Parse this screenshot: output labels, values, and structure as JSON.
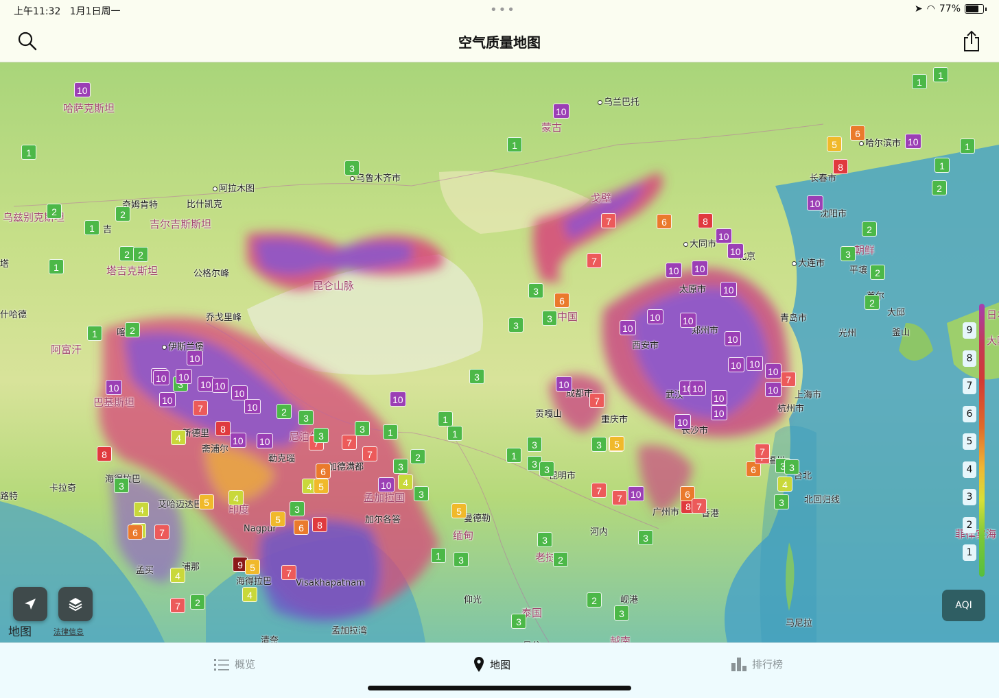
{
  "status": {
    "time": "上午11:32",
    "date": "1月1日周一",
    "battery": "77%"
  },
  "nav": {
    "title": "空气质量地图",
    "search_icon": "search-icon",
    "share_icon": "share-icon"
  },
  "colors": {
    "purple": "#9b3fb5",
    "darkred": "#8b1a1a",
    "red": "#e03a3e",
    "redlight": "#ec5a5a",
    "orange": "#ea7a2c",
    "yellow": "#f0b92b",
    "lime": "#c9d83a",
    "green": "#4cb848"
  },
  "map": {
    "places": [
      {
        "label": "哈萨克斯坦",
        "cls": "country"
      },
      {
        "label": "蒙古",
        "cls": "country"
      },
      {
        "label": "乌兰巴托",
        "cls": "dot"
      },
      {
        "label": "哈尔滨市",
        "cls": "dot"
      },
      {
        "label": "乌鲁木齐市",
        "cls": "dot"
      },
      {
        "label": "长春市",
        "cls": ""
      },
      {
        "label": "阿拉木图",
        "cls": "dot"
      },
      {
        "label": "比什凯克",
        "cls": ""
      },
      {
        "label": "奇姆肯特",
        "cls": ""
      },
      {
        "label": "吉尔吉斯斯坦",
        "cls": "country"
      },
      {
        "label": "乌兹别克斯坦",
        "cls": "country"
      },
      {
        "label": "沈阳市",
        "cls": ""
      },
      {
        "label": "大同市",
        "cls": "dot"
      },
      {
        "label": "北京",
        "cls": ""
      },
      {
        "label": "大连市",
        "cls": "dot"
      },
      {
        "label": "塔吉克斯坦",
        "cls": "country"
      },
      {
        "label": "公格尔峰",
        "cls": ""
      },
      {
        "label": "平壤",
        "cls": ""
      },
      {
        "label": "太原市",
        "cls": ""
      },
      {
        "label": "首尔",
        "cls": ""
      },
      {
        "label": "中国",
        "cls": "country"
      },
      {
        "label": "昆仑山脉",
        "cls": "country"
      },
      {
        "label": "乔戈里峰",
        "cls": ""
      },
      {
        "label": "青岛市",
        "cls": ""
      },
      {
        "label": "大邱",
        "cls": ""
      },
      {
        "label": "光州",
        "cls": ""
      },
      {
        "label": "釜山",
        "cls": ""
      },
      {
        "label": "阿富汗",
        "cls": "country"
      },
      {
        "label": "郑州市",
        "cls": ""
      },
      {
        "label": "西安市",
        "cls": ""
      },
      {
        "label": "伊斯兰堡",
        "cls": "dot"
      },
      {
        "label": "巴基斯坦",
        "cls": "country"
      },
      {
        "label": "成都市",
        "cls": ""
      },
      {
        "label": "上海市",
        "cls": ""
      },
      {
        "label": "杭州市",
        "cls": ""
      },
      {
        "label": "贡嘎山",
        "cls": ""
      },
      {
        "label": "重庆市",
        "cls": ""
      },
      {
        "label": "武汉",
        "cls": ""
      },
      {
        "label": "新德里",
        "cls": ""
      },
      {
        "label": "长沙市",
        "cls": ""
      },
      {
        "label": "斋浦尔",
        "cls": ""
      },
      {
        "label": "尼泊尔",
        "cls": "country"
      },
      {
        "label": "勒克瑙",
        "cls": ""
      },
      {
        "label": "加德满都",
        "cls": ""
      },
      {
        "label": "昆明市",
        "cls": ""
      },
      {
        "label": "福州",
        "cls": ""
      },
      {
        "label": "台北",
        "cls": ""
      },
      {
        "label": "卡拉奇",
        "cls": ""
      },
      {
        "label": "海得拉巴",
        "cls": ""
      },
      {
        "label": "孟加拉国",
        "cls": "country"
      },
      {
        "label": "印度",
        "cls": "country"
      },
      {
        "label": "艾哈迈达巴德",
        "cls": ""
      },
      {
        "label": "广州市",
        "cls": ""
      },
      {
        "label": "香港",
        "cls": ""
      },
      {
        "label": "加尔各答",
        "cls": ""
      },
      {
        "label": "曼德勒",
        "cls": ""
      },
      {
        "label": "缅甸",
        "cls": "country"
      },
      {
        "label": "河内",
        "cls": ""
      },
      {
        "label": "Nagpur",
        "cls": ""
      },
      {
        "label": "孟买",
        "cls": ""
      },
      {
        "label": "浦那",
        "cls": ""
      },
      {
        "label": "海得拉巴",
        "cls": ""
      },
      {
        "label": "Visakhapatnam",
        "cls": ""
      },
      {
        "label": "老挝",
        "cls": "country"
      },
      {
        "label": "仰光",
        "cls": ""
      },
      {
        "label": "岘港",
        "cls": ""
      },
      {
        "label": "泰国",
        "cls": "country"
      },
      {
        "label": "曼谷",
        "cls": ""
      },
      {
        "label": "越南",
        "cls": "country"
      },
      {
        "label": "马尼拉",
        "cls": ""
      },
      {
        "label": "清奈",
        "cls": ""
      },
      {
        "label": "孟加拉湾",
        "cls": ""
      },
      {
        "label": "北回归线",
        "cls": ""
      },
      {
        "label": "什哈德",
        "cls": ""
      },
      {
        "label": "喀什",
        "cls": ""
      },
      {
        "label": "日本",
        "cls": "country"
      },
      {
        "label": "大阪",
        "cls": "country"
      },
      {
        "label": "菲律宾海",
        "cls": "country"
      },
      {
        "label": "戈壁",
        "cls": "country"
      },
      {
        "label": "朝鲜",
        "cls": "country"
      },
      {
        "label": "吉",
        "cls": ""
      },
      {
        "label": "塔",
        "cls": ""
      },
      {
        "label": "路特",
        "cls": ""
      }
    ],
    "markers": [
      {
        "v": "10",
        "c": "purple"
      },
      {
        "v": "10",
        "c": "purple"
      },
      {
        "v": "1",
        "c": "green"
      },
      {
        "v": "1",
        "c": "green"
      },
      {
        "v": "1",
        "c": "green"
      },
      {
        "v": "5",
        "c": "yellow"
      },
      {
        "v": "6",
        "c": "orange"
      },
      {
        "v": "10",
        "c": "purple"
      },
      {
        "v": "1",
        "c": "green"
      },
      {
        "v": "1",
        "c": "green"
      },
      {
        "v": "3",
        "c": "green"
      },
      {
        "v": "8",
        "c": "red"
      },
      {
        "v": "1",
        "c": "green"
      },
      {
        "v": "2",
        "c": "green"
      },
      {
        "v": "2",
        "c": "green"
      },
      {
        "v": "2",
        "c": "green"
      },
      {
        "v": "1",
        "c": "green"
      },
      {
        "v": "10",
        "c": "purple"
      },
      {
        "v": "7",
        "c": "redlight"
      },
      {
        "v": "6",
        "c": "orange"
      },
      {
        "v": "8",
        "c": "red"
      },
      {
        "v": "10",
        "c": "purple"
      },
      {
        "v": "10",
        "c": "purple"
      },
      {
        "v": "2",
        "c": "green"
      },
      {
        "v": "2",
        "c": "green"
      },
      {
        "v": "2",
        "c": "green"
      },
      {
        "v": "3",
        "c": "green"
      },
      {
        "v": "7",
        "c": "redlight"
      },
      {
        "v": "10",
        "c": "purple"
      },
      {
        "v": "10",
        "c": "purple"
      },
      {
        "v": "2",
        "c": "green"
      },
      {
        "v": "1",
        "c": "green"
      },
      {
        "v": "3",
        "c": "green"
      },
      {
        "v": "6",
        "c": "orange"
      },
      {
        "v": "10",
        "c": "purple"
      },
      {
        "v": "2",
        "c": "green"
      },
      {
        "v": "3",
        "c": "green"
      },
      {
        "v": "3",
        "c": "green"
      },
      {
        "v": "10",
        "c": "purple"
      },
      {
        "v": "10",
        "c": "purple"
      },
      {
        "v": "10",
        "c": "purple"
      },
      {
        "v": "1",
        "c": "green"
      },
      {
        "v": "2",
        "c": "green"
      },
      {
        "v": "10",
        "c": "purple"
      },
      {
        "v": "10",
        "c": "purple"
      },
      {
        "v": "10",
        "c": "purple"
      },
      {
        "v": "10",
        "c": "purple"
      },
      {
        "v": "3",
        "c": "green"
      },
      {
        "v": "10",
        "c": "purple"
      },
      {
        "v": "10",
        "c": "purple"
      },
      {
        "v": "10",
        "c": "purple"
      },
      {
        "v": "10",
        "c": "purple"
      },
      {
        "v": "7",
        "c": "redlight"
      },
      {
        "v": "10",
        "c": "purple"
      },
      {
        "v": "10",
        "c": "purple"
      },
      {
        "v": "10",
        "c": "purple"
      },
      {
        "v": "10",
        "c": "purple"
      },
      {
        "v": "10",
        "c": "purple"
      },
      {
        "v": "10",
        "c": "purple"
      },
      {
        "v": "10",
        "c": "purple"
      },
      {
        "v": "7",
        "c": "redlight"
      },
      {
        "v": "10",
        "c": "purple"
      },
      {
        "v": "10",
        "c": "purple"
      },
      {
        "v": "10",
        "c": "purple"
      },
      {
        "v": "3",
        "c": "green"
      },
      {
        "v": "10",
        "c": "purple"
      },
      {
        "v": "10",
        "c": "purple"
      },
      {
        "v": "10",
        "c": "purple"
      },
      {
        "v": "7",
        "c": "redlight"
      },
      {
        "v": "8",
        "c": "red"
      },
      {
        "v": "4",
        "c": "lime"
      },
      {
        "v": "2",
        "c": "green"
      },
      {
        "v": "3",
        "c": "green"
      },
      {
        "v": "3",
        "c": "green"
      },
      {
        "v": "1",
        "c": "green"
      },
      {
        "v": "1",
        "c": "green"
      },
      {
        "v": "1",
        "c": "green"
      },
      {
        "v": "7",
        "c": "redlight"
      },
      {
        "v": "3",
        "c": "green"
      },
      {
        "v": "5",
        "c": "yellow"
      },
      {
        "v": "3",
        "c": "green"
      },
      {
        "v": "3",
        "c": "green"
      },
      {
        "v": "7",
        "c": "redlight"
      },
      {
        "v": "10",
        "c": "purple"
      },
      {
        "v": "10",
        "c": "purple"
      },
      {
        "v": "8",
        "c": "red"
      },
      {
        "v": "10",
        "c": "purple"
      },
      {
        "v": "3",
        "c": "green"
      },
      {
        "v": "10",
        "c": "purple"
      },
      {
        "v": "7",
        "c": "redlight"
      },
      {
        "v": "7",
        "c": "redlight"
      },
      {
        "v": "3",
        "c": "green"
      },
      {
        "v": "1",
        "c": "green"
      },
      {
        "v": "2",
        "c": "green"
      },
      {
        "v": "3",
        "c": "green"
      },
      {
        "v": "6",
        "c": "orange"
      },
      {
        "v": "4",
        "c": "lime"
      },
      {
        "v": "5",
        "c": "yellow"
      },
      {
        "v": "4",
        "c": "lime"
      },
      {
        "v": "4",
        "c": "lime"
      },
      {
        "v": "3",
        "c": "green"
      },
      {
        "v": "7",
        "c": "redlight"
      },
      {
        "v": "6",
        "c": "orange"
      },
      {
        "v": "7",
        "c": "redlight"
      },
      {
        "v": "10",
        "c": "purple"
      },
      {
        "v": "5",
        "c": "yellow"
      },
      {
        "v": "6",
        "c": "orange"
      },
      {
        "v": "8",
        "c": "red"
      },
      {
        "v": "5",
        "c": "yellow"
      },
      {
        "v": "7",
        "c": "redlight"
      },
      {
        "v": "4",
        "c": "lime"
      },
      {
        "v": "9",
        "c": "darkred"
      },
      {
        "v": "5",
        "c": "yellow"
      },
      {
        "v": "7",
        "c": "redlight"
      },
      {
        "v": "4",
        "c": "lime"
      },
      {
        "v": "4",
        "c": "lime"
      },
      {
        "v": "3",
        "c": "green"
      },
      {
        "v": "4",
        "c": "lime"
      },
      {
        "v": "5",
        "c": "yellow"
      },
      {
        "v": "3",
        "c": "green"
      },
      {
        "v": "2",
        "c": "green"
      },
      {
        "v": "3",
        "c": "green"
      },
      {
        "v": "2",
        "c": "green"
      },
      {
        "v": "3",
        "c": "green"
      },
      {
        "v": "2",
        "c": "green"
      },
      {
        "v": "1",
        "c": "green"
      },
      {
        "v": "7",
        "c": "redlight"
      },
      {
        "v": "6",
        "c": "orange"
      },
      {
        "v": "3",
        "c": "green"
      },
      {
        "v": "4",
        "c": "lime"
      },
      {
        "v": "3",
        "c": "green"
      },
      {
        "v": "7",
        "c": "redlight"
      },
      {
        "v": "8",
        "c": "red"
      },
      {
        "v": "6",
        "c": "orange"
      },
      {
        "v": "7",
        "c": "redlight"
      },
      {
        "v": "3",
        "c": "green"
      },
      {
        "v": "3",
        "c": "green"
      },
      {
        "v": "3",
        "c": "green"
      },
      {
        "v": "5",
        "c": "yellow"
      },
      {
        "v": "3",
        "c": "green"
      }
    ]
  },
  "legend": {
    "values": [
      "9",
      "8",
      "7",
      "6",
      "5",
      "4",
      "3",
      "2",
      "1"
    ]
  },
  "controls": {
    "aqi_label": "AQI",
    "apple_maps": "地图",
    "legal": "法律信息"
  },
  "tabs": [
    {
      "label": "概览",
      "icon": "list-icon",
      "active": false
    },
    {
      "label": "地图",
      "icon": "map-pin-icon",
      "active": true
    },
    {
      "label": "排行榜",
      "icon": "bar-chart-icon",
      "active": false
    }
  ]
}
